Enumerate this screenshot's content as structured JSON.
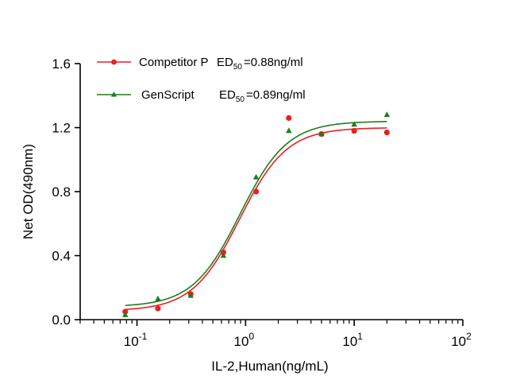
{
  "chart_data": {
    "type": "scatter",
    "xlabel": "IL-2,Human(ng/mL)",
    "ylabel": "Net OD(490nm)",
    "x_scale": "log10",
    "xlim": [
      0.03,
      100
    ],
    "ylim": [
      0,
      1.6
    ],
    "x_tick_exponents": [
      "-1",
      "0",
      "1",
      "2"
    ],
    "x_tick_base": "10",
    "y_ticks": [
      "0.0",
      "0.4",
      "0.8",
      "1.2",
      "1.6"
    ],
    "grid": false,
    "legend_position": "top-left",
    "series": [
      {
        "name": "Competitor P",
        "ed50_text": "=0.88ng/ml",
        "color": "#e8201f",
        "marker": "circle",
        "x": [
          0.078,
          0.156,
          0.3125,
          0.625,
          1.25,
          2.5,
          5,
          10,
          20
        ],
        "y": [
          0.05,
          0.07,
          0.16,
          0.42,
          0.8,
          1.26,
          1.16,
          1.18,
          1.17
        ],
        "fit": {
          "bottom": 0.055,
          "top": 1.2,
          "ec50": 0.88,
          "hill": 2.0
        }
      },
      {
        "name": "GenScript",
        "ed50_text": "=0.89ng/ml",
        "color": "#1e7d1e",
        "marker": "triangle",
        "x": [
          0.078,
          0.156,
          0.3125,
          0.625,
          1.25,
          2.5,
          5,
          10,
          20
        ],
        "y": [
          0.03,
          0.13,
          0.15,
          0.4,
          0.89,
          1.18,
          1.16,
          1.22,
          1.28
        ],
        "fit": {
          "bottom": 0.08,
          "top": 1.24,
          "ec50": 0.89,
          "hill": 2.0
        }
      }
    ],
    "ed50_label": "ED",
    "ed50_sub": "50"
  }
}
